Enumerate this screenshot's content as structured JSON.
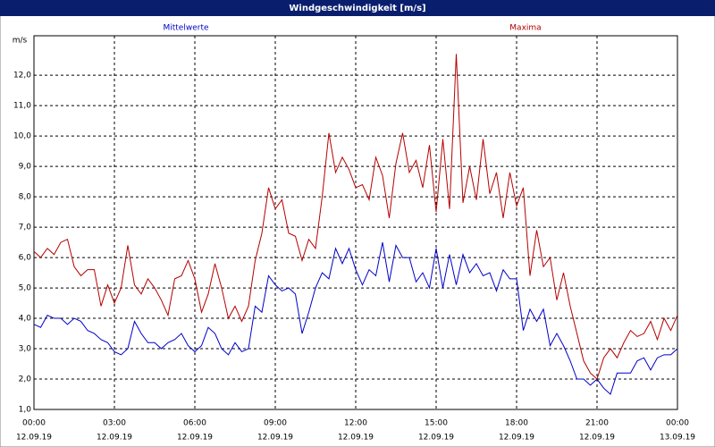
{
  "chart_data": {
    "type": "line",
    "title": "Windgeschwindigkeit [m/s]",
    "y_label": "m/s",
    "x": [
      0,
      0.25,
      0.5,
      0.75,
      1,
      1.25,
      1.5,
      1.75,
      2,
      2.25,
      2.5,
      2.75,
      3,
      3.25,
      3.5,
      3.75,
      4,
      4.25,
      4.5,
      4.75,
      5,
      5.25,
      5.5,
      5.75,
      6,
      6.25,
      6.5,
      6.75,
      7,
      7.25,
      7.5,
      7.75,
      8,
      8.25,
      8.5,
      8.75,
      9,
      9.25,
      9.5,
      9.75,
      10,
      10.25,
      10.5,
      10.75,
      11,
      11.25,
      11.5,
      11.75,
      12,
      12.25,
      12.5,
      12.75,
      13,
      13.25,
      13.5,
      13.75,
      14,
      14.25,
      14.5,
      14.75,
      15,
      15.25,
      15.5,
      15.75,
      16,
      16.25,
      16.5,
      16.75,
      17,
      17.25,
      17.5,
      17.75,
      18,
      18.25,
      18.5,
      18.75,
      19,
      19.25,
      19.5,
      19.75,
      20,
      20.25,
      20.5,
      20.75,
      21,
      21.25,
      21.5,
      21.75,
      22,
      22.25,
      22.5,
      22.75,
      23,
      23.25,
      23.5,
      23.75,
      24
    ],
    "series": [
      {
        "name": "Mittelwerte",
        "color": "#0000c8",
        "values": [
          3.8,
          3.7,
          4.1,
          4.0,
          4.0,
          3.8,
          4.0,
          3.9,
          3.6,
          3.5,
          3.3,
          3.2,
          2.9,
          2.8,
          3.0,
          3.9,
          3.5,
          3.2,
          3.2,
          3.0,
          3.2,
          3.3,
          3.5,
          3.1,
          2.9,
          3.1,
          3.7,
          3.5,
          3.0,
          2.8,
          3.2,
          2.9,
          3.0,
          4.4,
          4.2,
          5.4,
          5.1,
          4.9,
          5.0,
          4.8,
          3.5,
          4.2,
          5.0,
          5.5,
          5.3,
          6.3,
          5.8,
          6.3,
          5.6,
          5.1,
          5.6,
          5.4,
          6.5,
          5.2,
          6.4,
          6.0,
          6.0,
          5.2,
          5.5,
          5.0,
          6.3,
          5.0,
          6.1,
          5.1,
          6.1,
          5.5,
          5.8,
          5.4,
          5.5,
          4.9,
          5.6,
          5.3,
          5.3,
          3.6,
          4.3,
          3.9,
          4.3,
          3.1,
          3.5,
          3.1,
          2.6,
          2.0,
          2.0,
          1.8,
          2.0,
          1.7,
          1.5,
          2.2,
          2.2,
          2.2,
          2.6,
          2.7,
          2.3,
          2.7,
          2.8,
          2.8,
          3.0
        ]
      },
      {
        "name": "Maxima",
        "color": "#b40000",
        "values": [
          6.2,
          6.0,
          6.3,
          6.1,
          6.5,
          6.6,
          5.7,
          5.4,
          5.6,
          5.6,
          4.4,
          5.1,
          4.5,
          5.0,
          6.4,
          5.1,
          4.8,
          5.3,
          5.0,
          4.6,
          4.1,
          5.3,
          5.4,
          5.9,
          5.3,
          4.2,
          4.8,
          5.8,
          5.0,
          4.0,
          4.4,
          3.9,
          4.4,
          5.9,
          6.8,
          8.3,
          7.6,
          7.9,
          6.8,
          6.7,
          5.9,
          6.6,
          6.3,
          8.0,
          10.1,
          8.8,
          9.3,
          8.9,
          8.3,
          8.4,
          7.9,
          9.3,
          8.7,
          7.3,
          9.1,
          10.1,
          8.8,
          9.2,
          8.3,
          9.7,
          7.5,
          9.9,
          7.6,
          12.7,
          7.8,
          9.0,
          7.9,
          9.9,
          8.1,
          8.8,
          7.3,
          8.8,
          7.7,
          8.3,
          5.4,
          6.9,
          5.7,
          6.0,
          4.6,
          5.5,
          4.4,
          3.5,
          2.6,
          2.2,
          2.0,
          2.7,
          3.0,
          2.7,
          3.2,
          3.6,
          3.4,
          3.5,
          3.9,
          3.3,
          4.0,
          3.6,
          4.1
        ]
      }
    ],
    "xlim": [
      0,
      24
    ],
    "xticks": [
      {
        "value": 0,
        "label": "00:00"
      },
      {
        "value": 3,
        "label": "03:00"
      },
      {
        "value": 6,
        "label": "06:00"
      },
      {
        "value": 9,
        "label": "09:00"
      },
      {
        "value": 12,
        "label": "12:00"
      },
      {
        "value": 15,
        "label": "15:00"
      },
      {
        "value": 18,
        "label": "18:00"
      },
      {
        "value": 21,
        "label": "21:00"
      },
      {
        "value": 24,
        "label": "00:00"
      }
    ],
    "xtick_dates": [
      "12.09.19",
      "12.09.19",
      "12.09.19",
      "12.09.19",
      "12.09.19",
      "12.09.19",
      "12.09.19",
      "12.09.19",
      "13.09.19"
    ],
    "ylim": [
      1,
      13.3
    ],
    "yticks": [
      {
        "value": 1,
        "label": "1,0"
      },
      {
        "value": 2,
        "label": "2,0"
      },
      {
        "value": 3,
        "label": "3,0"
      },
      {
        "value": 4,
        "label": "4,0"
      },
      {
        "value": 5,
        "label": "5,0"
      },
      {
        "value": 6,
        "label": "6,0"
      },
      {
        "value": 7,
        "label": "7,0"
      },
      {
        "value": 8,
        "label": "8,0"
      },
      {
        "value": 9,
        "label": "9,0"
      },
      {
        "value": 10,
        "label": "10,0"
      },
      {
        "value": 11,
        "label": "11,0"
      },
      {
        "value": 12,
        "label": "12,0"
      }
    ],
    "grid": true
  }
}
